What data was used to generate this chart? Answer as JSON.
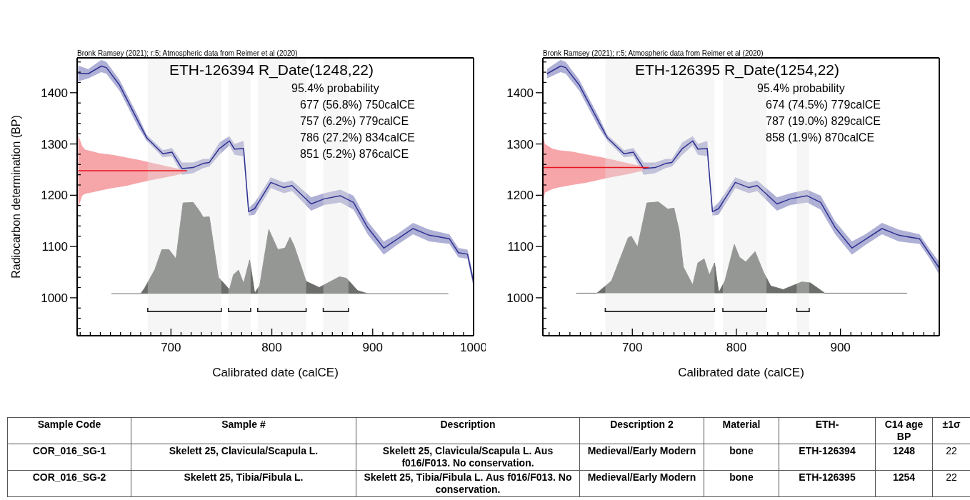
{
  "chart_data": [
    {
      "type": "area",
      "title": "ETH-126394 R_Date(1248,22)",
      "xlabel": "Calibrated date (calCE)",
      "ylabel": "Radiocarbon determination (BP)",
      "annotations": [
        "Bronk Ramsey (2021); r:5; Atmospheric data from Reimer et al (2020)",
        "95.4% probability",
        "677 (56.8%) 750calCE",
        "757 (6.2%) 779calCE",
        "786 (27.2%) 834calCE",
        "851 (5.2%) 876calCE"
      ],
      "xlim": [
        607,
        1000
      ],
      "ylim": [
        926,
        1468
      ],
      "xticks": [
        {
          "value": 610,
          "label": null
        },
        {
          "value": 620,
          "label": null
        },
        {
          "value": 630,
          "label": null
        },
        {
          "value": 640,
          "label": null
        },
        {
          "value": 650,
          "label": null
        },
        {
          "value": 660,
          "label": null
        },
        {
          "value": 670,
          "label": null
        },
        {
          "value": 680,
          "label": null
        },
        {
          "value": 690,
          "label": null
        },
        700,
        {
          "value": 710,
          "label": null
        },
        {
          "value": 720,
          "label": null
        },
        {
          "value": 730,
          "label": null
        },
        {
          "value": 740,
          "label": null
        },
        {
          "value": 750,
          "label": null
        },
        {
          "value": 760,
          "label": null
        },
        {
          "value": 770,
          "label": null
        },
        {
          "value": 780,
          "label": null
        },
        {
          "value": 790,
          "label": null
        },
        800,
        {
          "value": 810,
          "label": null
        },
        {
          "value": 820,
          "label": null
        },
        {
          "value": 830,
          "label": null
        },
        {
          "value": 840,
          "label": null
        },
        {
          "value": 850,
          "label": null
        },
        {
          "value": 860,
          "label": null
        },
        {
          "value": 870,
          "label": null
        },
        {
          "value": 880,
          "label": null
        },
        {
          "value": 890,
          "label": null
        },
        900,
        {
          "value": 910,
          "label": null
        },
        {
          "value": 920,
          "label": null
        },
        {
          "value": 930,
          "label": null
        },
        {
          "value": 940,
          "label": null
        },
        {
          "value": 950,
          "label": null
        },
        {
          "value": 960,
          "label": null
        },
        {
          "value": 970,
          "label": null
        },
        {
          "value": 980,
          "label": null
        },
        {
          "value": 990,
          "label": null
        },
        1000
      ],
      "yticks": [
        {
          "value": 940,
          "label": null
        },
        {
          "value": 960,
          "label": null
        },
        {
          "value": 980,
          "label": null
        },
        1000,
        {
          "value": 1020,
          "label": null
        },
        {
          "value": 1040,
          "label": null
        },
        {
          "value": 1060,
          "label": null
        },
        {
          "value": 1080,
          "label": null
        },
        1100,
        {
          "value": 1120,
          "label": null
        },
        {
          "value": 1140,
          "label": null
        },
        {
          "value": 1160,
          "label": null
        },
        {
          "value": 1180,
          "label": null
        },
        1200,
        {
          "value": 1220,
          "label": null
        },
        {
          "value": 1240,
          "label": null
        },
        {
          "value": 1260,
          "label": null
        },
        {
          "value": 1280,
          "label": null
        },
        1300,
        {
          "value": 1320,
          "label": null
        },
        {
          "value": 1340,
          "label": null
        },
        {
          "value": 1360,
          "label": null
        },
        {
          "value": 1380,
          "label": null
        },
        1400,
        {
          "value": 1420,
          "label": null
        },
        {
          "value": 1440,
          "label": null
        },
        {
          "value": 1460,
          "label": null
        }
      ],
      "series": [
        {
          "type": "line",
          "color": "#2e3192",
          "x": [
            608,
            618,
            631,
            636,
            649,
            668,
            676,
            692,
            701,
            711,
            722,
            732,
            738,
            748,
            758,
            763,
            772,
            777,
            783,
            799,
            812,
            820,
            839,
            852,
            868,
            881,
            895,
            911,
            924,
            940,
            956,
            976,
            985,
            994,
            1000
          ],
          "values": [
            1438,
            1437,
            1452,
            1449,
            1415,
            1342,
            1312,
            1281,
            1284,
            1252,
            1254,
            1262,
            1264,
            1291,
            1306,
            1290,
            1291,
            1168,
            1174,
            1225,
            1215,
            1219,
            1183,
            1193,
            1199,
            1186,
            1137,
            1097,
            1114,
            1135,
            1122,
            1115,
            1088,
            1085,
            1030
          ],
          "upper": [
            1453,
            1446,
            1464,
            1460,
            1425,
            1352,
            1318,
            1288,
            1292,
            1264,
            1264,
            1271,
            1271,
            1303,
            1315,
            1300,
            1306,
            1175,
            1186,
            1235,
            1225,
            1229,
            1196,
            1204,
            1211,
            1199,
            1149,
            1110,
            1124,
            1146,
            1133,
            1124,
            1097,
            1094,
            1040
          ],
          "lower": [
            1422,
            1428,
            1440,
            1437,
            1404,
            1331,
            1306,
            1274,
            1276,
            1240,
            1243,
            1253,
            1256,
            1279,
            1297,
            1279,
            1276,
            1160,
            1162,
            1214,
            1204,
            1208,
            1170,
            1181,
            1186,
            1172,
            1124,
            1084,
            1103,
            1124,
            1110,
            1105,
            1079,
            1076,
            1020
          ]
        },
        {
          "type": "area",
          "color": "#6b6e6b",
          "x": [
            641,
            670,
            674,
            684,
            691,
            698,
            705,
            712,
            722,
            728,
            732,
            738,
            747,
            758,
            762,
            767,
            772,
            778,
            783,
            788,
            797,
            806,
            813,
            818,
            822,
            834,
            847,
            867,
            874,
            885,
            895,
            975
          ],
          "values": [
            1008,
            1008,
            1019,
            1055,
            1094,
            1094,
            1076,
            1185,
            1186,
            1170,
            1157,
            1158,
            1040,
            1016,
            1045,
            1054,
            1028,
            1074,
            1009,
            1024,
            1133,
            1094,
            1097,
            1118,
            1102,
            1032,
            1020,
            1041,
            1038,
            1014,
            1008,
            1008
          ]
        },
        {
          "type": "line",
          "color": "#e8141e",
          "x": [
            608,
            612,
            615,
            623,
            629,
            642,
            655,
            668,
            682,
            695,
            709,
            716
          ],
          "values": [
            1248,
            1248,
            1248,
            1248,
            1248,
            1248,
            1248,
            1248,
            1248,
            1248,
            1248,
            1248
          ],
          "upper": [
            1318,
            1296,
            1289,
            1285,
            1282,
            1279,
            1274,
            1269,
            1263,
            1257,
            1251,
            1248
          ],
          "lower": [
            1176,
            1199,
            1203,
            1206,
            1209,
            1214,
            1218,
            1224,
            1230,
            1235,
            1241,
            1248
          ]
        }
      ],
      "bands": [
        {
          "axis": "x",
          "from": 677,
          "to": 750
        },
        {
          "axis": "x",
          "from": 757,
          "to": 779
        },
        {
          "axis": "x",
          "from": 786,
          "to": 834
        },
        {
          "axis": "x",
          "from": 851,
          "to": 876
        }
      ]
    },
    {
      "type": "area",
      "title": "ETH-126395 R_Date(1254,22)",
      "xlabel": "Calibrated date (calCE)",
      "annotations": [
        "Bronk Ramsey (2021); r:5; Atmospheric data from Reimer et al (2020)",
        "95.4% probability",
        "674 (74.5%) 779calCE",
        "787 (19.0%) 829calCE",
        "858 (1.9%) 870calCE"
      ],
      "xlim": [
        614,
        995
      ],
      "ylim": [
        926,
        1468
      ],
      "xticks": [
        {
          "value": 620,
          "label": null
        },
        {
          "value": 630,
          "label": null
        },
        {
          "value": 640,
          "label": null
        },
        {
          "value": 650,
          "label": null
        },
        {
          "value": 660,
          "label": null
        },
        {
          "value": 670,
          "label": null
        },
        {
          "value": 680,
          "label": null
        },
        {
          "value": 690,
          "label": null
        },
        700,
        {
          "value": 710,
          "label": null
        },
        {
          "value": 720,
          "label": null
        },
        {
          "value": 730,
          "label": null
        },
        {
          "value": 740,
          "label": null
        },
        {
          "value": 750,
          "label": null
        },
        {
          "value": 760,
          "label": null
        },
        {
          "value": 770,
          "label": null
        },
        {
          "value": 780,
          "label": null
        },
        {
          "value": 790,
          "label": null
        },
        800,
        {
          "value": 810,
          "label": null
        },
        {
          "value": 820,
          "label": null
        },
        {
          "value": 830,
          "label": null
        },
        {
          "value": 840,
          "label": null
        },
        {
          "value": 850,
          "label": null
        },
        {
          "value": 860,
          "label": null
        },
        {
          "value": 870,
          "label": null
        },
        {
          "value": 880,
          "label": null
        },
        {
          "value": 890,
          "label": null
        },
        900,
        {
          "value": 910,
          "label": null
        },
        {
          "value": 920,
          "label": null
        },
        {
          "value": 930,
          "label": null
        },
        {
          "value": 940,
          "label": null
        },
        {
          "value": 950,
          "label": null
        },
        {
          "value": 960,
          "label": null
        },
        {
          "value": 970,
          "label": null
        },
        {
          "value": 980,
          "label": null
        },
        {
          "value": 990,
          "label": null
        }
      ],
      "yticks": [
        {
          "value": 940,
          "label": null
        },
        {
          "value": 960,
          "label": null
        },
        {
          "value": 980,
          "label": null
        },
        1000,
        {
          "value": 1020,
          "label": null
        },
        {
          "value": 1040,
          "label": null
        },
        {
          "value": 1060,
          "label": null
        },
        {
          "value": 1080,
          "label": null
        },
        1100,
        {
          "value": 1120,
          "label": null
        },
        {
          "value": 1140,
          "label": null
        },
        {
          "value": 1160,
          "label": null
        },
        {
          "value": 1180,
          "label": null
        },
        1200,
        {
          "value": 1220,
          "label": null
        },
        {
          "value": 1240,
          "label": null
        },
        {
          "value": 1260,
          "label": null
        },
        {
          "value": 1280,
          "label": null
        },
        1300,
        {
          "value": 1320,
          "label": null
        },
        {
          "value": 1340,
          "label": null
        },
        {
          "value": 1360,
          "label": null
        },
        {
          "value": 1380,
          "label": null
        },
        1400,
        {
          "value": 1420,
          "label": null
        },
        {
          "value": 1440,
          "label": null
        },
        {
          "value": 1460,
          "label": null
        }
      ],
      "series": [
        {
          "type": "line",
          "color": "#2e3192",
          "x": [
            618,
            631,
            636,
            649,
            668,
            676,
            692,
            701,
            711,
            722,
            732,
            738,
            748,
            758,
            763,
            772,
            777,
            783,
            799,
            812,
            820,
            839,
            852,
            868,
            881,
            895,
            911,
            924,
            940,
            956,
            976,
            985,
            995
          ],
          "values": [
            1437,
            1452,
            1449,
            1415,
            1342,
            1312,
            1281,
            1284,
            1252,
            1254,
            1262,
            1264,
            1291,
            1306,
            1290,
            1291,
            1168,
            1174,
            1225,
            1215,
            1219,
            1183,
            1193,
            1199,
            1186,
            1137,
            1097,
            1114,
            1135,
            1122,
            1115,
            1088,
            1058
          ],
          "upper": [
            1446,
            1464,
            1460,
            1425,
            1352,
            1318,
            1288,
            1292,
            1264,
            1264,
            1271,
            1271,
            1303,
            1315,
            1300,
            1306,
            1175,
            1186,
            1235,
            1225,
            1229,
            1196,
            1204,
            1211,
            1199,
            1149,
            1110,
            1124,
            1146,
            1133,
            1124,
            1097,
            1070
          ],
          "lower": [
            1428,
            1440,
            1437,
            1404,
            1331,
            1306,
            1274,
            1276,
            1240,
            1243,
            1253,
            1256,
            1279,
            1297,
            1279,
            1276,
            1160,
            1162,
            1214,
            1204,
            1208,
            1170,
            1181,
            1186,
            1172,
            1124,
            1084,
            1103,
            1124,
            1110,
            1105,
            1079,
            1045
          ]
        },
        {
          "type": "area",
          "color": "#6b6e6b",
          "x": [
            646,
            666,
            680,
            696,
            699,
            705,
            714,
            725,
            734,
            740,
            745,
            749,
            758,
            763,
            769,
            774,
            779,
            783,
            789,
            798,
            803,
            809,
            818,
            826,
            833,
            845,
            863,
            871,
            885,
            964
          ],
          "values": [
            1009,
            1009,
            1033,
            1117,
            1120,
            1099,
            1185,
            1187,
            1173,
            1175,
            1131,
            1060,
            1025,
            1068,
            1076,
            1044,
            1068,
            1010,
            1033,
            1104,
            1079,
            1070,
            1090,
            1050,
            1023,
            1016,
            1031,
            1029,
            1009,
            1009
          ]
        },
        {
          "type": "line",
          "color": "#e8141e",
          "x": [
            614,
            616,
            623,
            629,
            642,
            655,
            668,
            682,
            695,
            709,
            716
          ],
          "values": [
            1254,
            1254,
            1254,
            1254,
            1254,
            1254,
            1254,
            1254,
            1254,
            1254,
            1254
          ],
          "upper": [
            1320,
            1300,
            1291,
            1288,
            1285,
            1280,
            1275,
            1269,
            1263,
            1257,
            1254
          ],
          "lower": [
            1185,
            1205,
            1212,
            1215,
            1220,
            1224,
            1230,
            1236,
            1241,
            1247,
            1254
          ]
        }
      ],
      "bands": [
        {
          "axis": "x",
          "from": 674,
          "to": 779
        },
        {
          "axis": "x",
          "from": 787,
          "to": 829
        },
        {
          "axis": "x",
          "from": 858,
          "to": 870
        }
      ]
    },
    {
      "type": "other",
      "categories": [
        "Sample Code",
        "Sample #",
        "Description",
        "Description 2",
        "Material",
        "ETH-",
        "C14 age BP",
        "±1σ"
      ],
      "cell_labels": [
        [
          "COR_016_SG-1",
          "Skelett 25, Clavicula/Scapula L.",
          "Skelett 25, Clavicula/Scapula L. Aus f016/F013. No conservation.",
          "Medieval/Early Modern",
          "bone",
          "ETH-126394",
          "1248",
          "22"
        ],
        [
          "COR_016_SG-2",
          "Skelett 25, Tibia/Fibula L.",
          "Skelett 25, Tibia/Fibula L. Aus f016/F013. No conservation.",
          "Medieval/Early Modern",
          "bone",
          "ETH-126395",
          "1254",
          "22"
        ]
      ]
    }
  ]
}
